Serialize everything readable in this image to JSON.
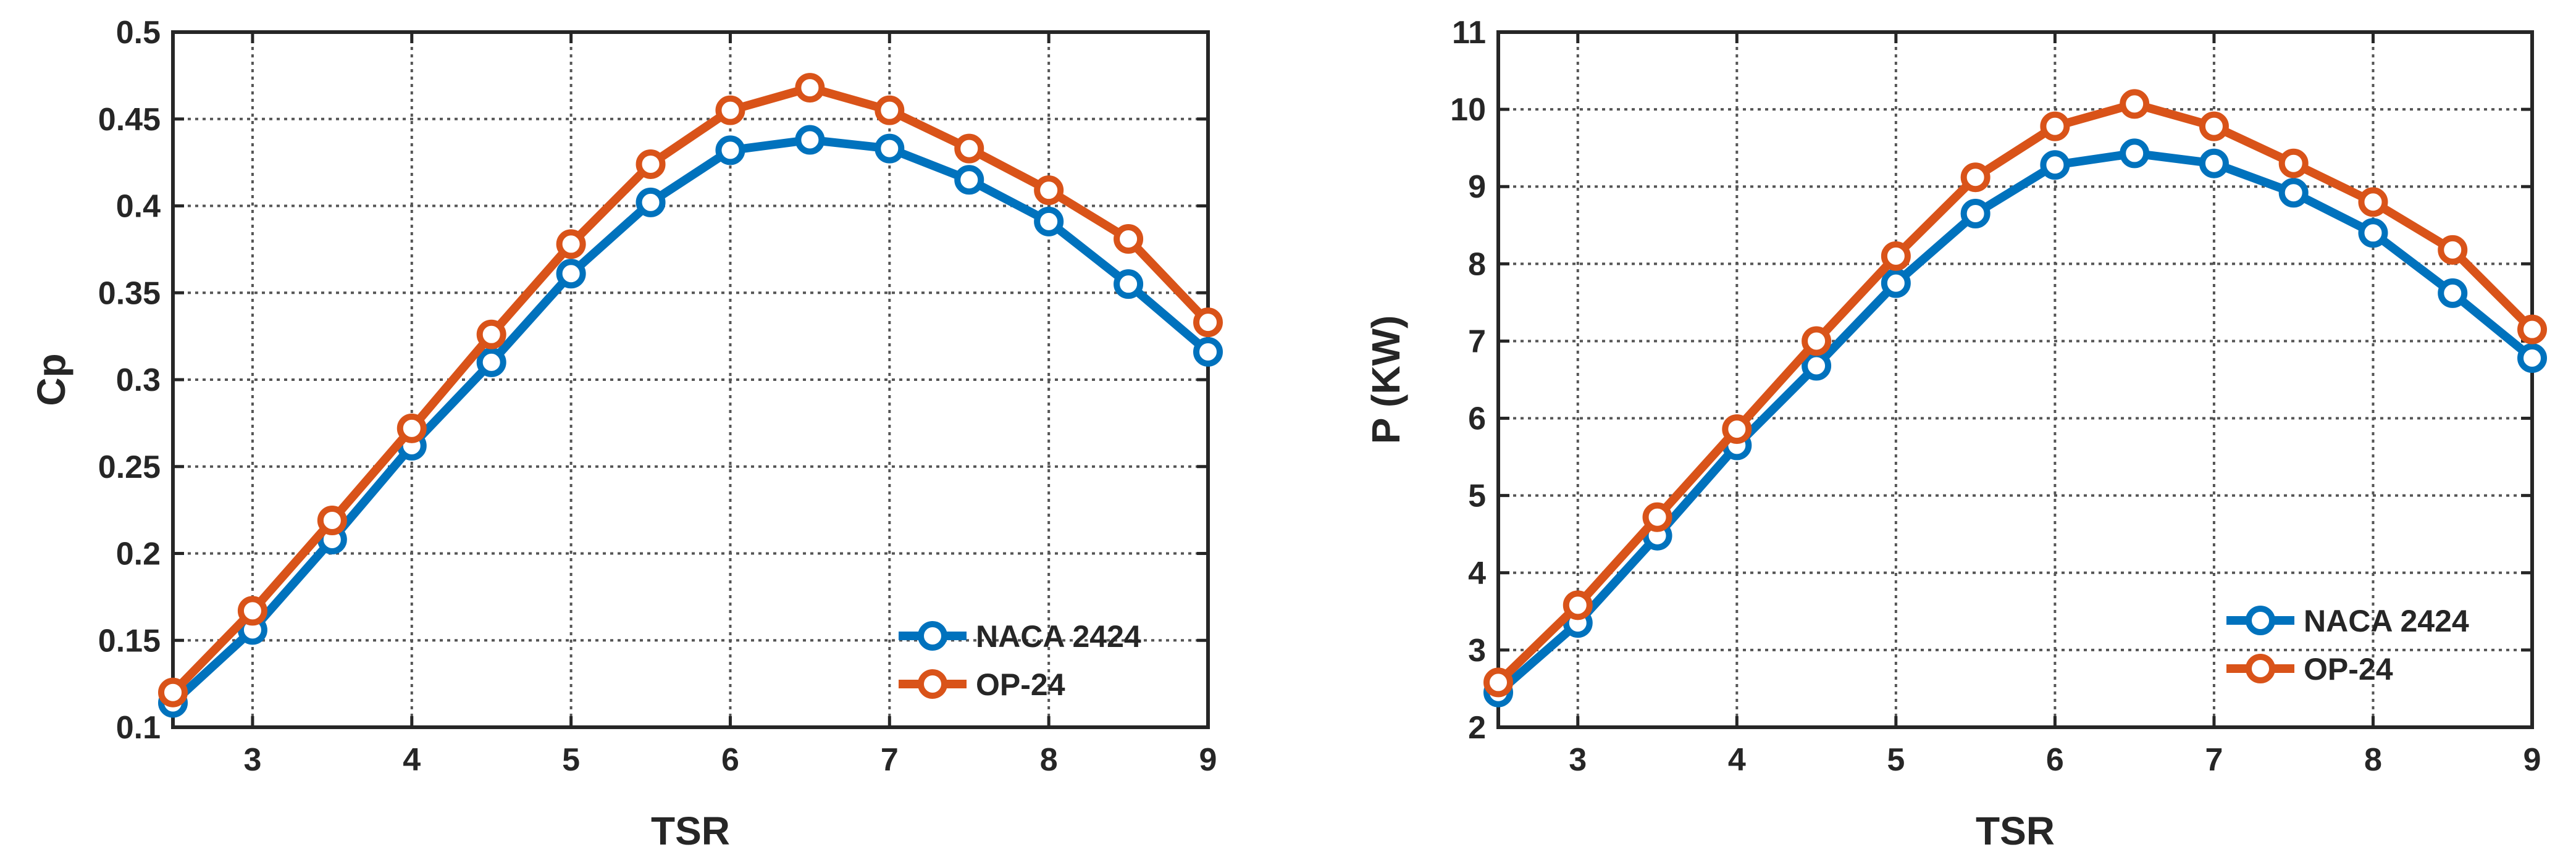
{
  "colors": {
    "naca": "#0072BD",
    "op": "#D95319",
    "axis": "#262626",
    "grid": "#555555"
  },
  "chart_data": [
    {
      "type": "line",
      "title": "",
      "xlabel": "TSR",
      "ylabel": "Cp",
      "xlim": [
        2.5,
        9
      ],
      "ylim": [
        0.1,
        0.5
      ],
      "xticks": [
        3,
        4,
        5,
        6,
        7,
        8,
        9
      ],
      "xtick_labels": [
        "3",
        "4",
        "5",
        "6",
        "7",
        "8",
        "9"
      ],
      "yticks": [
        0.1,
        0.15,
        0.2,
        0.25,
        0.3,
        0.35,
        0.4,
        0.45,
        0.5
      ],
      "ytick_labels": [
        "0.1",
        "0.15",
        "0.2",
        "0.25",
        "0.3",
        "0.35",
        "0.4",
        "0.45",
        "0.5"
      ],
      "grid": true,
      "legend_position": "bottom-right",
      "x": [
        2.5,
        3,
        3.5,
        4,
        4.5,
        5,
        5.5,
        6,
        6.5,
        7,
        7.5,
        8,
        8.5,
        9
      ],
      "series": [
        {
          "name": "NACA 2424",
          "color": "#0072BD",
          "values": [
            0.114,
            0.156,
            0.208,
            0.262,
            0.31,
            0.361,
            0.402,
            0.432,
            0.438,
            0.433,
            0.415,
            0.391,
            0.355,
            0.316
          ]
        },
        {
          "name": "OP-24",
          "color": "#D95319",
          "values": [
            0.12,
            0.167,
            0.219,
            0.272,
            0.326,
            0.378,
            0.424,
            0.455,
            0.468,
            0.455,
            0.433,
            0.409,
            0.381,
            0.333
          ]
        }
      ]
    },
    {
      "type": "line",
      "title": "",
      "xlabel": "TSR",
      "ylabel": "P (KW)",
      "xlim": [
        2.5,
        9
      ],
      "ylim": [
        2,
        11
      ],
      "xticks": [
        3,
        4,
        5,
        6,
        7,
        8,
        9
      ],
      "xtick_labels": [
        "3",
        "4",
        "5",
        "6",
        "7",
        "8",
        "9"
      ],
      "yticks": [
        2,
        3,
        4,
        5,
        6,
        7,
        8,
        9,
        10,
        11
      ],
      "ytick_labels": [
        "2",
        "3",
        "4",
        "5",
        "6",
        "7",
        "8",
        "9",
        "10",
        "11"
      ],
      "grid": true,
      "legend_position": "bottom-right",
      "x": [
        2.5,
        3,
        3.5,
        4,
        4.5,
        5,
        5.5,
        6,
        6.5,
        7,
        7.5,
        8,
        8.5,
        9
      ],
      "series": [
        {
          "name": "NACA 2424",
          "color": "#0072BD",
          "values": [
            2.45,
            3.35,
            4.48,
            5.65,
            6.68,
            7.75,
            8.65,
            9.28,
            9.43,
            9.3,
            8.92,
            8.4,
            7.62,
            6.78
          ]
        },
        {
          "name": "OP-24",
          "color": "#D95319",
          "values": [
            2.58,
            3.58,
            4.72,
            5.86,
            7.0,
            8.1,
            9.12,
            9.78,
            10.07,
            9.78,
            9.3,
            8.8,
            8.18,
            7.15
          ]
        }
      ]
    }
  ]
}
